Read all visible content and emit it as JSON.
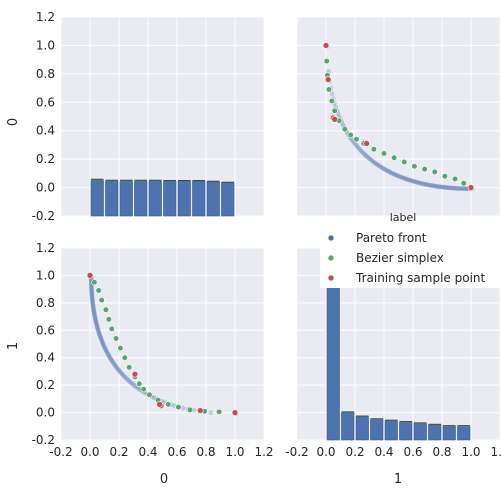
{
  "chart_data": {
    "type": "pairplot",
    "variables": [
      "0",
      "1"
    ],
    "axes_ticks": [
      "-0.2",
      "0.0",
      "0.2",
      "0.4",
      "0.6",
      "0.8",
      "1.0",
      "1.2"
    ],
    "tick_values": [
      -0.2,
      0.0,
      0.2,
      0.4,
      0.6,
      0.8,
      1.0,
      1.2
    ],
    "xlim": [
      -0.2,
      1.2
    ],
    "ylim": [
      -0.2,
      1.2
    ],
    "grid": true,
    "legend": {
      "title": "label",
      "placement": "right",
      "entries": [
        {
          "name": "Pareto front",
          "color": "#4c72b0"
        },
        {
          "name": "Bezier simplex",
          "color": "#55a868"
        },
        {
          "name": "Training sample point",
          "color": "#c44e52"
        }
      ]
    },
    "hist_0": {
      "bins": [
        0.0,
        0.1,
        0.2,
        0.3,
        0.4,
        0.5,
        0.6,
        0.7,
        0.8,
        0.9,
        1.0
      ],
      "pareto": [
        0.05,
        0.045,
        0.045,
        0.045,
        0.045,
        0.045,
        0.045,
        0.045,
        0.04,
        0.035
      ],
      "bezier": [
        0.01,
        0.008,
        0.008,
        0.008,
        0.008,
        0.006,
        0.006,
        0.006,
        0.006,
        0.004
      ],
      "sample": [
        0.002,
        0.002,
        0.002,
        0.002,
        0.002,
        0.002,
        0.002,
        0.002,
        0.002,
        0.002
      ]
    },
    "hist_1": {
      "bins": [
        0.0,
        0.1,
        0.2,
        0.3,
        0.4,
        0.5,
        0.6,
        0.7,
        0.8,
        0.9,
        1.0
      ],
      "pareto": [
        1.17,
        0.0,
        -0.03,
        -0.05,
        -0.06,
        -0.07,
        -0.08,
        -0.09,
        -0.1,
        -0.1
      ],
      "bezier": [
        0.03,
        0.005,
        0.005,
        0.005,
        0.005,
        0.005,
        0.005,
        0.005,
        0.005,
        0.005
      ],
      "sample": [
        0.005,
        0.003,
        0.003,
        0.003,
        0.003,
        0.003,
        0.003,
        0.003,
        0.003,
        0.003
      ]
    },
    "bezier_points": [
      [
        0.0,
        1.0
      ],
      [
        0.005,
        0.89
      ],
      [
        0.01,
        0.79
      ],
      [
        0.02,
        0.69
      ],
      [
        0.04,
        0.61
      ],
      [
        0.06,
        0.54
      ],
      [
        0.09,
        0.47
      ],
      [
        0.13,
        0.41
      ],
      [
        0.17,
        0.37
      ],
      [
        0.21,
        0.34
      ],
      [
        0.26,
        0.31
      ],
      [
        0.33,
        0.27
      ],
      [
        0.4,
        0.24
      ],
      [
        0.47,
        0.21
      ],
      [
        0.54,
        0.18
      ],
      [
        0.61,
        0.15
      ],
      [
        0.68,
        0.13
      ],
      [
        0.75,
        0.11
      ],
      [
        0.82,
        0.08
      ],
      [
        0.89,
        0.06
      ],
      [
        0.95,
        0.03
      ],
      [
        1.0,
        0.0
      ]
    ],
    "sample_points": [
      [
        0.0,
        1.0
      ],
      [
        0.015,
        0.76
      ],
      [
        0.05,
        0.49
      ],
      [
        0.06,
        0.48
      ],
      [
        0.28,
        0.31
      ],
      [
        1.0,
        0.0
      ]
    ]
  }
}
